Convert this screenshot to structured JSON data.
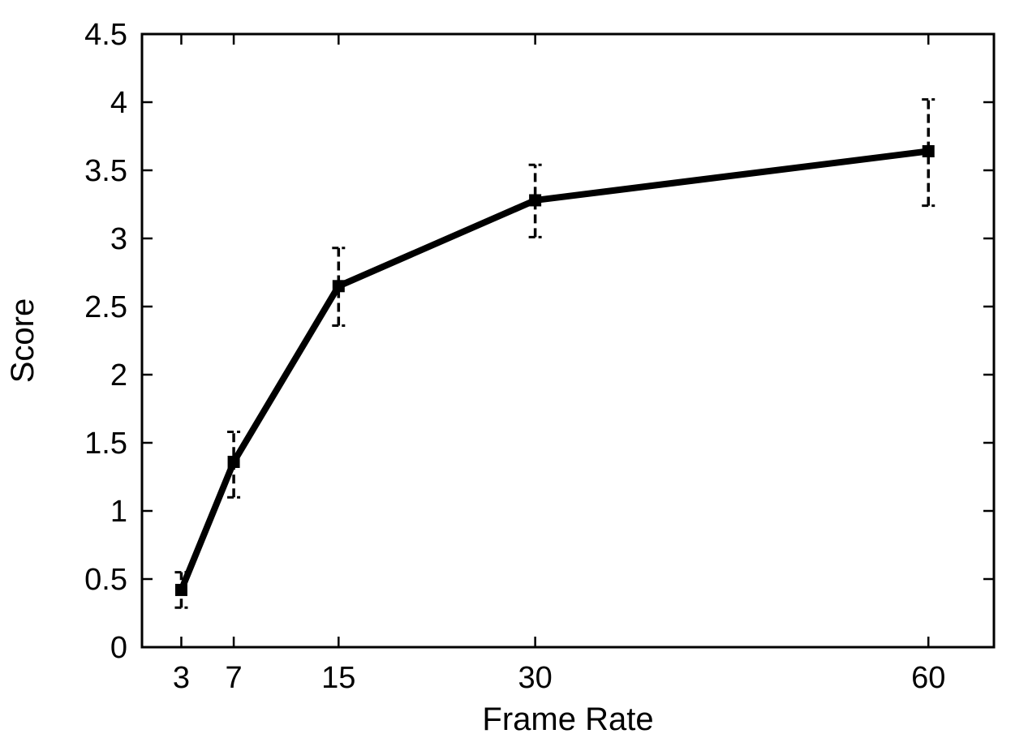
{
  "figure": {
    "background": "#ffffff",
    "foreground": "#000000"
  },
  "chart_data": {
    "type": "line",
    "xlabel": "Frame Rate",
    "ylabel": "Score",
    "x": [
      3,
      7,
      15,
      30,
      60
    ],
    "series": [
      {
        "name": "Score",
        "values": [
          0.42,
          1.36,
          2.65,
          3.28,
          3.64
        ],
        "error_low": [
          0.29,
          1.1,
          2.36,
          3.01,
          3.24
        ],
        "error_high": [
          0.55,
          1.58,
          2.93,
          3.54,
          4.02
        ],
        "color": "#000000",
        "marker": "filled-square",
        "line_style": "solid",
        "error_bar_style": "dashed"
      }
    ],
    "xlim": [
      0,
      65
    ],
    "ylim": [
      0,
      4.5
    ],
    "xticks": {
      "values": [
        3,
        7,
        15,
        30,
        60
      ],
      "labels": [
        "3",
        "7",
        "15",
        "30",
        "60"
      ]
    },
    "yticks": {
      "values": [
        0,
        0.5,
        1,
        1.5,
        2,
        2.5,
        3,
        3.5,
        4,
        4.5
      ],
      "labels": [
        "0",
        "0.5",
        "1",
        "1.5",
        "2",
        "2.5",
        "3",
        "3.5",
        "4",
        "4.5"
      ]
    },
    "grid": false,
    "legend_position": "none",
    "axis_box": "full",
    "tick_direction": "in",
    "tick_sides": [
      "bottom",
      "top",
      "left",
      "right"
    ]
  }
}
